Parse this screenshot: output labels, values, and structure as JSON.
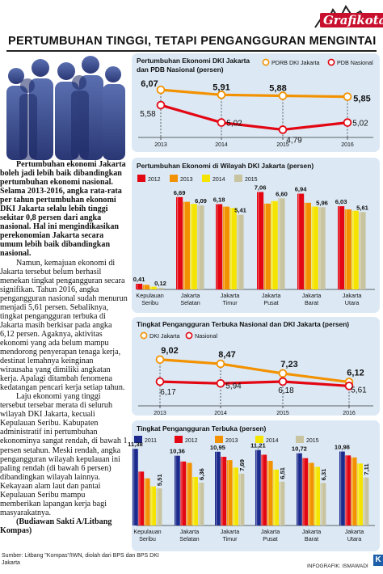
{
  "header": {
    "logo": "Grafikota",
    "title": "PERTUMBUHAN TINGGI, TETAPI PENGANGGURAN MENGINTAI"
  },
  "article": {
    "paragraphs": [
      "Pertumbuhan ekonomi Jakarta boleh jadi lebih baik dibandingkan pertumbuhan ekonomi nasional. Selama 2013-2016, angka rata-rata per tahun pertumbuhan ekonomi DKI Jakarta selalu lebih tinggi sekitar 0,8 persen dari angka nasional. Hal ini mengindikasikan perekonomian Jakarta secara umum lebih baik dibandingkan nasional.",
      "Namun, kemajuan ekonomi di Jakarta tersebut belum berhasil menekan tingkat pengangguran secara signifikan. Tahun 2016, angka pengangguran nasional sudah menurun menjadi 5,61 persen. Sebaliknya, tingkat pengangguran terbuka di Jakarta masih berkisar pada angka 6,12 persen. Agaknya, aktivitas ekonomi yang ada belum mampu mendorong penyerapan tenaga kerja, destinat lemahnya keinginan wirausaha yang dimiliki angkatan kerja. Apalagi ditambah fenomena kedatangan pencari kerja setiap tahun.",
      "Laju ekonomi yang tinggi tersebut tersebar merata di seluruh wilayah DKI Jakarta, kecuali Kepulauan Seribu. Kabupaten administratif ini pertumbuhan ekonominya sangat rendah, di bawah 1 persen setahun. Meski rendah, angka pengangguran wilayah kepulauan ini paling rendah (di bawah 6 persen) dibandingkan wilayah lainnya. Kekayaan alam laut dan pantai Kepulauan Seribu mampu memberikan lapangan kerja bagi masyarakatnya.",
      "(Budiawan Sakti A/Litbang Kompas)"
    ]
  },
  "footer": {
    "source": "Sumber: Litbang \"Kompas\"/IWN, diolah dari BPS dan BPS DKI Jakarta",
    "credit": "INFOGRAFIK: ISMAWADI",
    "badge": "K"
  },
  "colors": {
    "orange": "#f39200",
    "red": "#e30613",
    "c2011": "#1b2a8c",
    "c2012": "#e30613",
    "c2013": "#f39200",
    "c2014": "#f4e400",
    "c2015": "#c8c4a0",
    "panel": "#dce9f5",
    "bar_highlight": "#ffffff"
  },
  "chart_data": [
    {
      "id": "c1",
      "type": "line",
      "title": "Pertumbuhan Ekonomi DKI Jakarta dan PDB Nasional (persen)",
      "x": [
        "2013",
        "2014",
        "2015",
        "2016"
      ],
      "series": [
        {
          "name": "PDRB DKI Jakarta",
          "values": [
            6.07,
            5.91,
            5.88,
            5.85
          ],
          "labels": [
            "6,07",
            "5,91",
            "5,88",
            "5,85"
          ],
          "color": "#f39200"
        },
        {
          "name": "PDB Nasional",
          "values": [
            5.58,
            5.02,
            4.79,
            5.02
          ],
          "labels": [
            "5,58",
            "5,02",
            "4,79",
            "5,02"
          ],
          "color": "#e30613"
        }
      ]
    },
    {
      "id": "c2",
      "type": "bar",
      "title": "Pertumbuhan Ekonomi di Wilayah DKI Jakarta (persen)",
      "categories": [
        "Kepulauan Seribu",
        "Jakarta Selatan",
        "Jakarta Timur",
        "Jakarta Pusat",
        "Jakarta Barat",
        "Jakarta Utara"
      ],
      "series": [
        {
          "name": "2012",
          "values": [
            0.41,
            6.69,
            6.18,
            7.06,
            6.94,
            6.03
          ],
          "color": "#e30613"
        },
        {
          "name": "2013",
          "values": [
            0.33,
            6.35,
            6.0,
            6.22,
            6.28,
            5.8
          ],
          "color": "#f39200"
        },
        {
          "name": "2014",
          "values": [
            0.2,
            6.2,
            5.9,
            6.4,
            6.0,
            5.7
          ],
          "color": "#f4e400"
        },
        {
          "name": "2015",
          "values": [
            0.12,
            6.09,
            5.41,
            6.6,
            5.96,
            5.61
          ],
          "color": "#c8c4a0"
        }
      ],
      "data_labels": [
        {
          "cat": 0,
          "series": 0,
          "text": "0,41"
        },
        {
          "cat": 0,
          "series": 3,
          "text": "0,12"
        },
        {
          "cat": 1,
          "series": 0,
          "text": "6,69"
        },
        {
          "cat": 1,
          "series": 3,
          "text": "6,09"
        },
        {
          "cat": 2,
          "series": 0,
          "text": "6,18"
        },
        {
          "cat": 2,
          "series": 3,
          "text": "5,41"
        },
        {
          "cat": 3,
          "series": 0,
          "text": "7,06"
        },
        {
          "cat": 3,
          "series": 3,
          "text": "6,60"
        },
        {
          "cat": 4,
          "series": 0,
          "text": "6,94"
        },
        {
          "cat": 4,
          "series": 3,
          "text": "5,96"
        },
        {
          "cat": 5,
          "series": 0,
          "text": "6,03"
        },
        {
          "cat": 5,
          "series": 3,
          "text": "5,61"
        }
      ],
      "ylim": [
        0,
        7.5
      ]
    },
    {
      "id": "c3",
      "type": "line",
      "title": "Tingkat Pengangguran Terbuka Nasional dan DKI Jakarta (persen)",
      "x": [
        "2013",
        "2014",
        "2015",
        "2016"
      ],
      "series": [
        {
          "name": "DKI Jakarta",
          "values": [
            9.02,
            8.47,
            7.23,
            6.12
          ],
          "labels": [
            "9,02",
            "8,47",
            "7,23",
            "6,12"
          ],
          "color": "#f39200"
        },
        {
          "name": "Nasional",
          "values": [
            6.17,
            5.94,
            6.18,
            5.61
          ],
          "labels": [
            "6,17",
            "5,94",
            "6,18",
            "5,61"
          ],
          "color": "#e30613"
        }
      ]
    },
    {
      "id": "c4",
      "type": "bar",
      "title": "Tingkat Pengangguran Terbuka (persen)",
      "categories": [
        "Kepulauan Seribu",
        "Jakarta Selatan",
        "Jakarta Timur",
        "Jakarta Pusat",
        "Jakarta Barat",
        "Jakarta Utara"
      ],
      "series": [
        {
          "name": "2011",
          "values": [
            11.38,
            10.36,
            10.95,
            11.21,
            10.72,
            10.98
          ],
          "color": "#1b2a8c"
        },
        {
          "name": "2012",
          "values": [
            8.0,
            9.5,
            10.2,
            10.5,
            10.0,
            10.4
          ],
          "color": "#e30613"
        },
        {
          "name": "2013",
          "values": [
            7.0,
            9.3,
            9.7,
            9.6,
            9.3,
            10.1
          ],
          "color": "#f39200"
        },
        {
          "name": "2014",
          "values": [
            5.8,
            7.2,
            8.6,
            8.3,
            8.7,
            9.2
          ],
          "color": "#f4e400"
        },
        {
          "name": "2015",
          "values": [
            5.51,
            6.36,
            7.69,
            6.51,
            6.31,
            7.11
          ],
          "color": "#c8c4a0"
        }
      ],
      "data_labels": [
        {
          "cat": 0,
          "series": 0,
          "text": "11,38"
        },
        {
          "cat": 0,
          "series": 4,
          "text": "5,51"
        },
        {
          "cat": 1,
          "series": 0,
          "text": "10,36"
        },
        {
          "cat": 1,
          "series": 4,
          "text": "6,36"
        },
        {
          "cat": 2,
          "series": 0,
          "text": "10,95"
        },
        {
          "cat": 2,
          "series": 4,
          "text": "7,69"
        },
        {
          "cat": 3,
          "series": 0,
          "text": "11,21"
        },
        {
          "cat": 3,
          "series": 4,
          "text": "6,51"
        },
        {
          "cat": 4,
          "series": 0,
          "text": "10,72"
        },
        {
          "cat": 4,
          "series": 4,
          "text": "6,31"
        },
        {
          "cat": 5,
          "series": 0,
          "text": "10,98"
        },
        {
          "cat": 5,
          "series": 4,
          "text": "7,11"
        }
      ],
      "ylim": [
        0,
        12
      ]
    }
  ]
}
